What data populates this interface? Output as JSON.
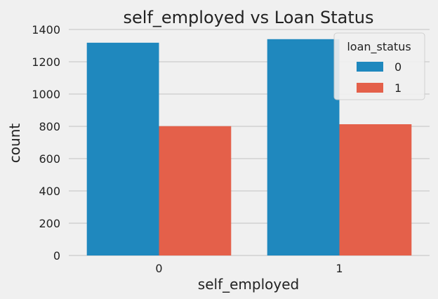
{
  "chart_data": {
    "type": "bar",
    "title": "self_employed vs Loan Status",
    "xlabel": "self_employed",
    "ylabel": "count",
    "categories": [
      "0",
      "1"
    ],
    "series": [
      {
        "name": "0",
        "values": [
          1318,
          1340
        ]
      },
      {
        "name": "1",
        "values": [
          801,
          813
        ]
      }
    ],
    "ylim": [
      0,
      1400
    ],
    "yticks": [
      "0",
      "200",
      "400",
      "600",
      "800",
      "1000",
      "1200",
      "1400"
    ],
    "grid": true,
    "legend": {
      "title": "loan_status",
      "placement": "top-right"
    },
    "colors": [
      "#1f88be",
      "#e4604a"
    ]
  }
}
